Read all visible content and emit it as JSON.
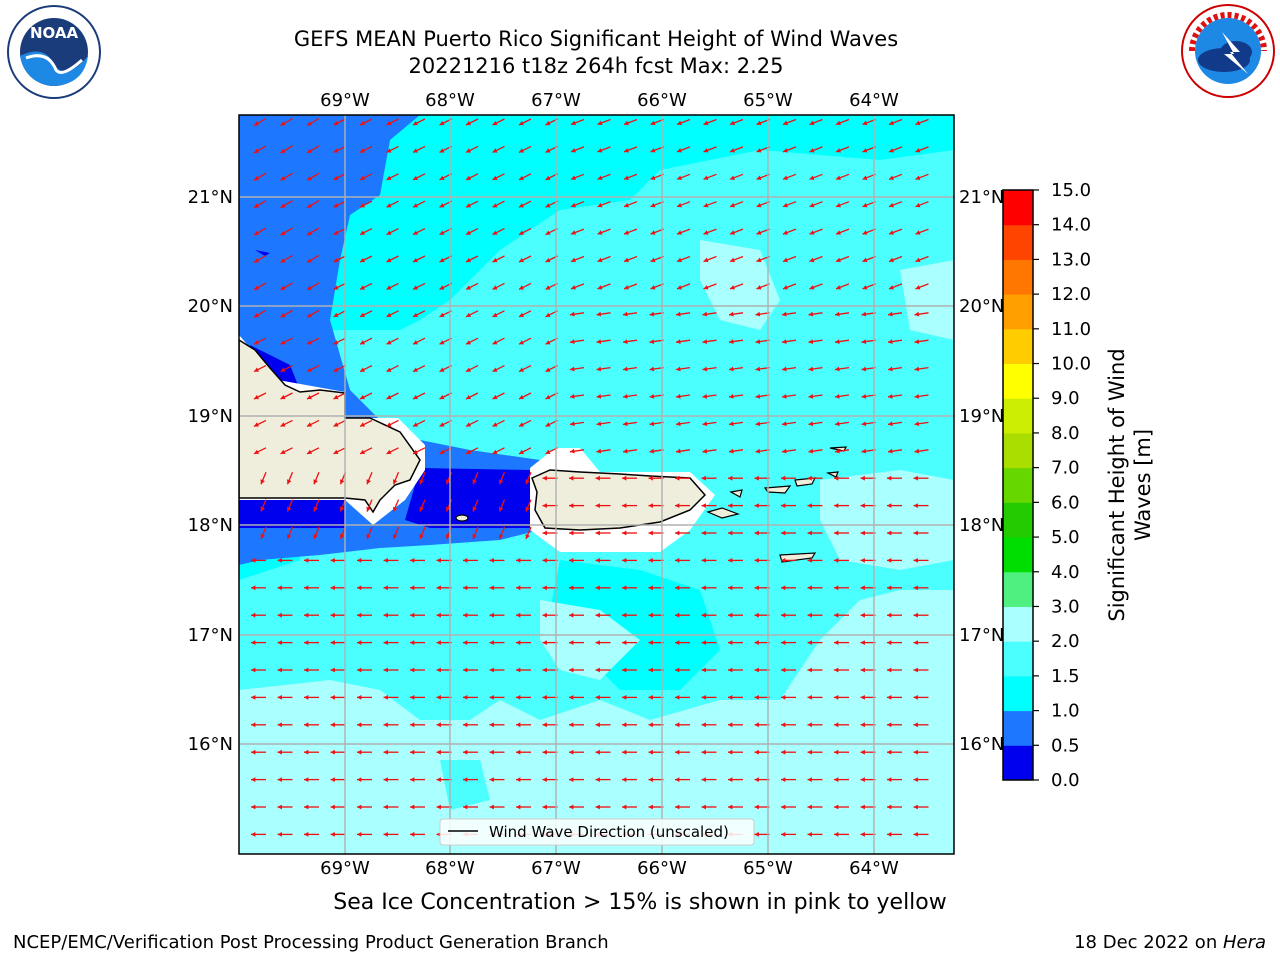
{
  "header": {
    "title_line1": "GEFS MEAN Puerto Rico Significant Height of Wind Waves",
    "title_line2": "20221216 t18z 264h fcst   Max: 2.25"
  },
  "map": {
    "lon_ticks": [
      "69°W",
      "68°W",
      "67°W",
      "66°W",
      "65°W",
      "64°W"
    ],
    "lat_ticks": [
      "21°N",
      "20°N",
      "19°N",
      "18°N",
      "17°N",
      "16°N"
    ],
    "legend_label": "Wind Wave Direction (unscaled)",
    "colors": {
      "land": "#efeedd",
      "arrow": "#ee1111",
      "grid": "#b0b0b0"
    }
  },
  "colorbar": {
    "label": "Significant Height of Wind Waves [m]",
    "label_line1": "Significant Height of Wind",
    "label_line2": "Waves [m]",
    "ticks": [
      "0.0",
      "0.5",
      "1.0",
      "1.5",
      "2.0",
      "3.0",
      "4.0",
      "5.0",
      "6.0",
      "7.0",
      "8.0",
      "9.0",
      "10.0",
      "11.0",
      "12.0",
      "13.0",
      "14.0",
      "15.0"
    ],
    "colors": [
      "#0000ee",
      "#1e78ff",
      "#00ffff",
      "#4cffff",
      "#aaffff",
      "#50f080",
      "#00dd00",
      "#22cc00",
      "#66d800",
      "#aadd00",
      "#ccee00",
      "#ffff00",
      "#ffcc00",
      "#ffa000",
      "#ff7700",
      "#ff4400",
      "#ff0000"
    ]
  },
  "caption": "Sea Ice Concentration > 15% is shown in pink to yellow",
  "footer": {
    "left": "NCEP/EMC/Verification Post Processing Product Generation Branch",
    "right_prefix": "18 Dec 2022 on ",
    "right_host": "Hera"
  },
  "logos": {
    "noaa": "NOAA",
    "nws": "NATIONAL WEATHER SERVICE"
  }
}
